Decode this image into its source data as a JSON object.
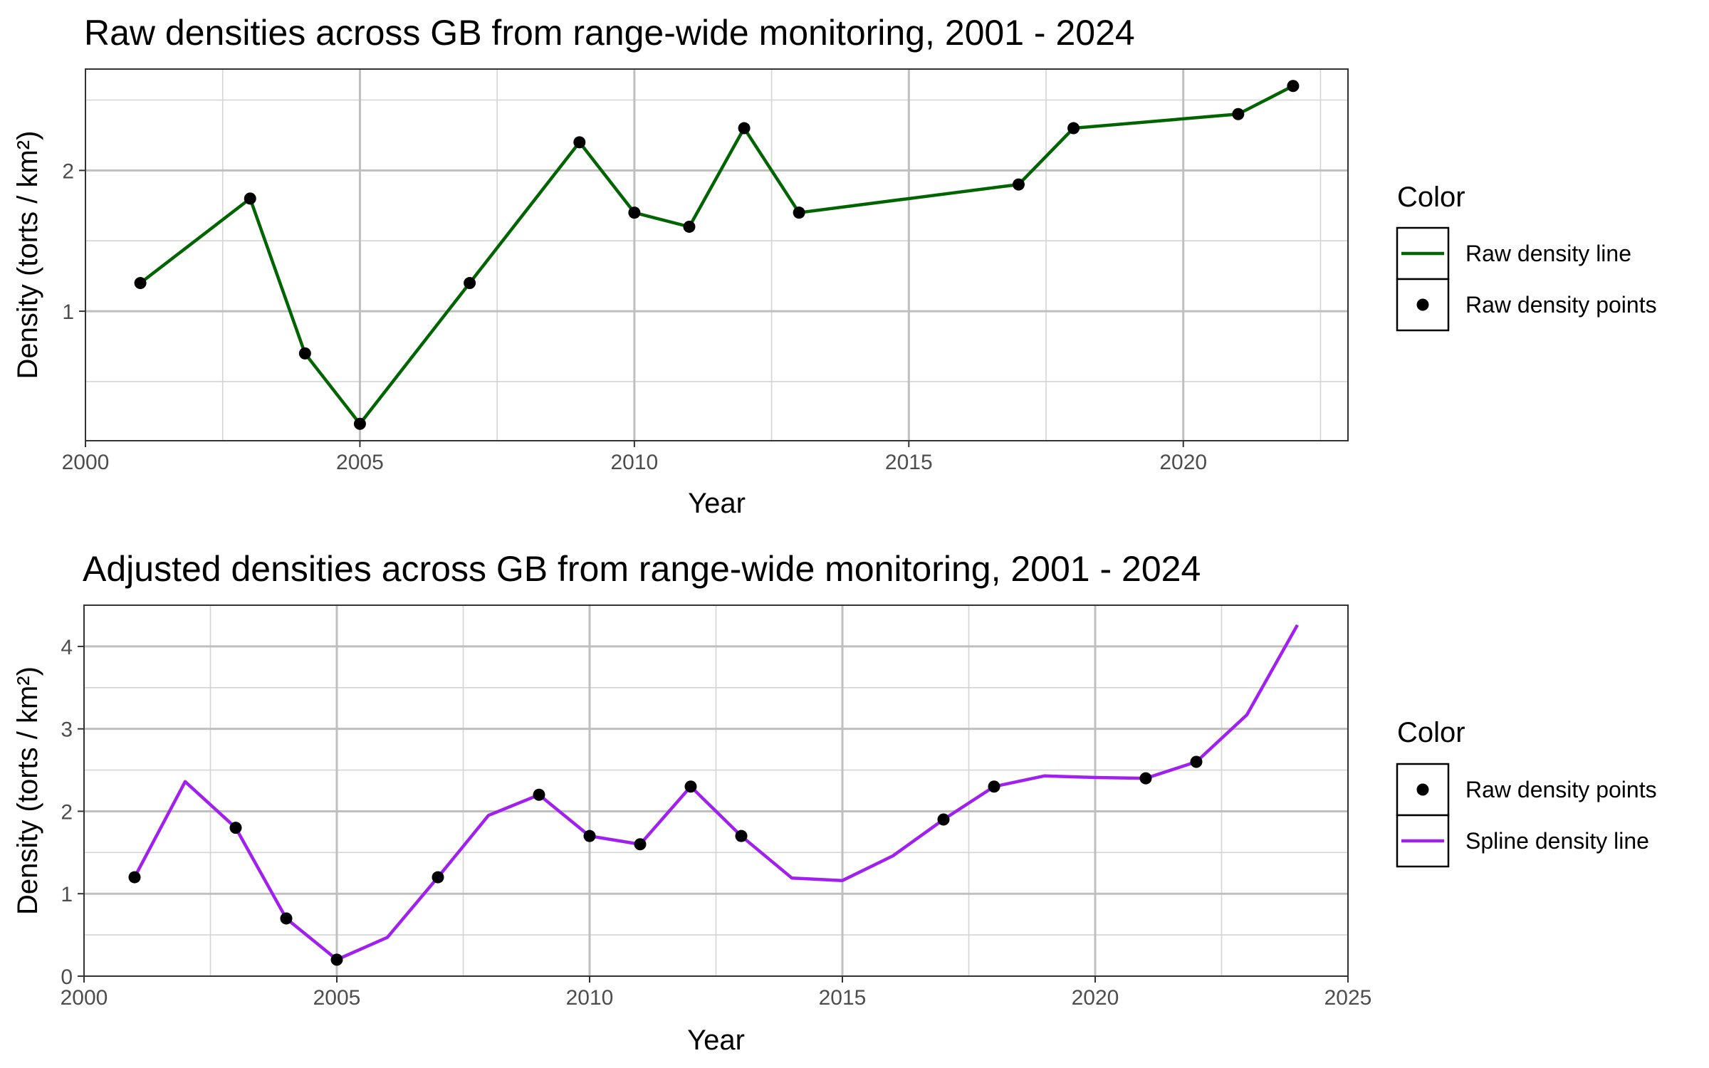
{
  "chart_data": [
    {
      "type": "line",
      "title": "Raw densities across GB from range-wide monitoring, 2001 - 2024",
      "xlabel": "Year",
      "ylabel": "Density (torts / km²)",
      "xlim": [
        2000,
        2023
      ],
      "ylim": [
        0.08,
        2.72
      ],
      "x_major_ticks": [
        2000,
        2005,
        2010,
        2015,
        2020
      ],
      "y_major_ticks": [
        1,
        2
      ],
      "grid": true,
      "legend": {
        "title": "Color",
        "position": "right",
        "entries": [
          {
            "label": "Raw density line",
            "kind": "line",
            "color": "#006400"
          },
          {
            "label": "Raw density points",
            "kind": "point",
            "color": "#000000"
          }
        ]
      },
      "series": [
        {
          "name": "Raw density line",
          "kind": "line",
          "color": "#006400",
          "x": [
            2001,
            2003,
            2004,
            2005,
            2007,
            2009,
            2010,
            2011,
            2012,
            2013,
            2017,
            2018,
            2021,
            2022
          ],
          "y": [
            1.2,
            1.8,
            0.7,
            0.2,
            1.2,
            2.2,
            1.7,
            1.6,
            2.3,
            1.7,
            1.9,
            2.3,
            2.4,
            2.6
          ]
        },
        {
          "name": "Raw density points",
          "kind": "point",
          "color": "#000000",
          "x": [
            2001,
            2003,
            2004,
            2005,
            2007,
            2009,
            2010,
            2011,
            2012,
            2013,
            2017,
            2018,
            2021,
            2022
          ],
          "y": [
            1.2,
            1.8,
            0.7,
            0.2,
            1.2,
            2.2,
            1.7,
            1.6,
            2.3,
            1.7,
            1.9,
            2.3,
            2.4,
            2.6
          ]
        }
      ]
    },
    {
      "type": "line",
      "title": "Adjusted densities across GB from range-wide monitoring, 2001 - 2024",
      "xlabel": "Year",
      "ylabel": "Density (torts / km²)",
      "xlim": [
        2000,
        2025
      ],
      "ylim": [
        0,
        4.5
      ],
      "x_major_ticks": [
        2000,
        2005,
        2010,
        2015,
        2020,
        2025
      ],
      "y_major_ticks": [
        0,
        1,
        2,
        3,
        4
      ],
      "grid": true,
      "legend": {
        "title": "Color",
        "position": "right",
        "entries": [
          {
            "label": "Raw density points",
            "kind": "point",
            "color": "#000000"
          },
          {
            "label": "Spline density line",
            "kind": "line",
            "color": "#A020F0"
          }
        ]
      },
      "series": [
        {
          "name": "Spline density line",
          "kind": "line",
          "color": "#A020F0",
          "x": [
            2001,
            2002,
            2003,
            2004,
            2005,
            2006,
            2007,
            2008,
            2009,
            2010,
            2011,
            2012,
            2013,
            2014,
            2015,
            2016,
            2017,
            2018,
            2019,
            2020,
            2021,
            2022,
            2023,
            2024
          ],
          "y": [
            1.2,
            2.36,
            1.8,
            0.7,
            0.2,
            0.47,
            1.2,
            1.95,
            2.2,
            1.7,
            1.6,
            2.3,
            1.7,
            1.19,
            1.16,
            1.46,
            1.9,
            2.3,
            2.43,
            2.41,
            2.4,
            2.6,
            3.17,
            4.26
          ]
        },
        {
          "name": "Raw density points",
          "kind": "point",
          "color": "#000000",
          "x": [
            2001,
            2003,
            2004,
            2005,
            2007,
            2009,
            2010,
            2011,
            2012,
            2013,
            2017,
            2018,
            2021,
            2022
          ],
          "y": [
            1.2,
            1.8,
            0.7,
            0.2,
            1.2,
            2.2,
            1.7,
            1.6,
            2.3,
            1.7,
            1.9,
            2.3,
            2.4,
            2.6
          ]
        }
      ]
    }
  ]
}
